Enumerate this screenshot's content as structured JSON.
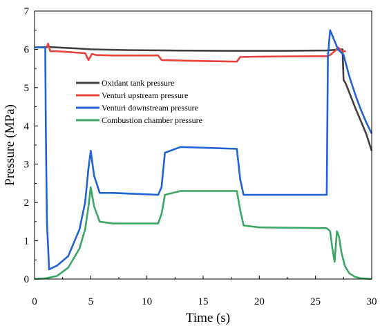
{
  "chart_data": {
    "type": "line",
    "title": "",
    "xlabel": "Time (s)",
    "ylabel": "Pressure (MPa)",
    "xlim": [
      0,
      30
    ],
    "ylim": [
      0,
      7
    ],
    "xticks": [
      0,
      5,
      10,
      15,
      20,
      25,
      30
    ],
    "yticks": [
      0,
      1,
      2,
      3,
      4,
      5,
      6,
      7
    ],
    "grid": false,
    "legend_position": "center-left",
    "series": [
      {
        "name": "Oxidant tank pressure",
        "color": "#404040",
        "x": [
          0,
          1.2,
          2,
          4,
          5,
          8,
          12,
          18,
          22,
          26,
          27.4,
          27.5,
          27.7,
          28.5,
          29.5,
          30
        ],
        "y": [
          6.05,
          6.06,
          6.05,
          6.02,
          6.0,
          5.98,
          5.97,
          5.96,
          5.96,
          5.97,
          6.0,
          5.2,
          5.1,
          4.5,
          3.8,
          3.35
        ]
      },
      {
        "name": "Venturi upstream pressure",
        "color": "#e8413c",
        "x": [
          0,
          1.1,
          1.2,
          1.4,
          2,
          4.5,
          4.8,
          5.1,
          5.5,
          7,
          11,
          11.3,
          14,
          18,
          18.3,
          20,
          25,
          26,
          26.3,
          26.7,
          27,
          27.4,
          27.7
        ],
        "y": [
          6.05,
          6.05,
          6.15,
          5.95,
          5.95,
          5.9,
          5.72,
          5.88,
          5.85,
          5.84,
          5.84,
          5.72,
          5.7,
          5.68,
          5.8,
          5.81,
          5.82,
          5.82,
          5.85,
          5.95,
          6.05,
          5.95,
          5.95
        ]
      },
      {
        "name": "Venturi downstream pressure",
        "color": "#1f63d4",
        "x": [
          0,
          0.95,
          1.0,
          1.1,
          1.3,
          2,
          3,
          4,
          4.5,
          4.8,
          5.0,
          5.3,
          5.8,
          7,
          11,
          11.3,
          11.6,
          13,
          18,
          18.3,
          18.6,
          20,
          26,
          26.1,
          26.3,
          27,
          27.5,
          28,
          28.5,
          29,
          29.5,
          30
        ],
        "y": [
          6.05,
          6.05,
          4.0,
          1.5,
          0.25,
          0.35,
          0.6,
          1.3,
          2.0,
          2.9,
          3.35,
          2.7,
          2.25,
          2.25,
          2.2,
          2.4,
          3.3,
          3.45,
          3.4,
          2.6,
          2.2,
          2.2,
          2.2,
          5.8,
          6.5,
          6.0,
          5.85,
          5.3,
          4.85,
          4.45,
          4.1,
          3.8
        ]
      },
      {
        "name": "Combustion chamber pressure",
        "color": "#3aa864",
        "x": [
          0,
          1,
          2,
          3,
          4,
          4.5,
          4.8,
          5.0,
          5.3,
          5.8,
          7,
          11,
          11.3,
          11.6,
          13,
          18,
          18.3,
          18.6,
          20,
          26,
          26.3,
          26.5,
          26.7,
          26.9,
          27.1,
          27.3,
          27.6,
          28,
          28.5,
          29,
          29.5,
          30
        ],
        "y": [
          0.0,
          0.02,
          0.08,
          0.3,
          0.8,
          1.3,
          1.9,
          2.4,
          1.9,
          1.5,
          1.45,
          1.45,
          1.7,
          2.2,
          2.3,
          2.3,
          1.8,
          1.4,
          1.35,
          1.33,
          1.25,
          0.8,
          0.45,
          1.25,
          1.1,
          0.7,
          0.35,
          0.15,
          0.06,
          0.02,
          0.01,
          0.0
        ]
      }
    ]
  }
}
